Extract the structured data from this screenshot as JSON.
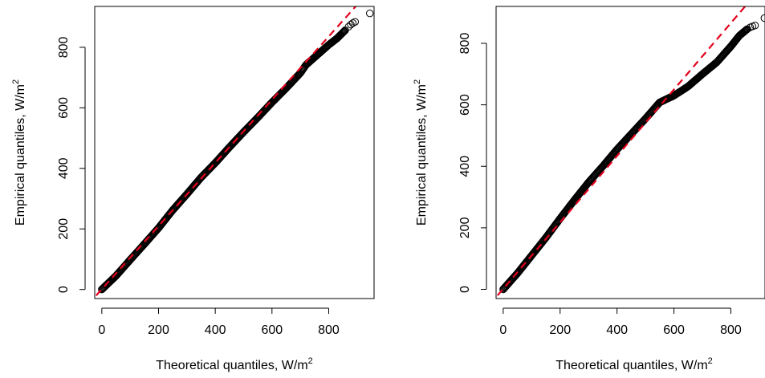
{
  "chart_data": [
    {
      "type": "scatter",
      "xlabel": "Theoretical quantiles,  W/m",
      "xlabel_sup": "2",
      "ylabel": "Empirical quantiles,  W/m",
      "ylabel_sup": "2",
      "xlim": [
        -25,
        960
      ],
      "ylim": [
        -30,
        935
      ],
      "xticks": [
        0,
        200,
        400,
        600,
        800
      ],
      "yticks": [
        0,
        200,
        400,
        600,
        800
      ],
      "reference_line": {
        "x": [
          -20,
          900
        ],
        "y": [
          -20,
          940
        ],
        "color": "#e3001b",
        "style": "dashed"
      },
      "series": [
        {
          "knots": [
            [
              0,
              0
            ],
            [
              50,
              45
            ],
            [
              100,
              98
            ],
            [
              150,
              150
            ],
            [
              200,
              203
            ],
            [
              250,
              262
            ],
            [
              300,
              315
            ],
            [
              350,
              370
            ],
            [
              400,
              418
            ],
            [
              450,
              470
            ],
            [
              500,
              520
            ],
            [
              550,
              568
            ],
            [
              600,
              618
            ],
            [
              650,
              665
            ],
            [
              700,
              715
            ],
            [
              720,
              742
            ],
            [
              760,
              775
            ],
            [
              800,
              808
            ],
            [
              830,
              830
            ],
            [
              860,
              858
            ]
          ],
          "extra_points": [
            [
              870,
              868
            ],
            [
              878,
              875
            ],
            [
              885,
              880
            ],
            [
              893,
              884
            ],
            [
              945,
              912
            ]
          ]
        }
      ]
    },
    {
      "type": "scatter",
      "xlabel": "Theoretical quantiles,  W/m",
      "xlabel_sup": "2",
      "ylabel": "Empirical quantiles,  W/m",
      "ylabel_sup": "2",
      "xlim": [
        -25,
        920
      ],
      "ylim": [
        -30,
        920
      ],
      "xticks": [
        0,
        200,
        400,
        600,
        800
      ],
      "yticks": [
        0,
        200,
        400,
        600,
        800
      ],
      "reference_line": {
        "x": [
          -20,
          850
        ],
        "y": [
          -20,
          920
        ],
        "color": "#e3001b",
        "style": "dashed"
      },
      "series": [
        {
          "knots": [
            [
              0,
              0
            ],
            [
              50,
              52
            ],
            [
              100,
              110
            ],
            [
              150,
              168
            ],
            [
              200,
              230
            ],
            [
              250,
              290
            ],
            [
              300,
              348
            ],
            [
              350,
              400
            ],
            [
              400,
              455
            ],
            [
              450,
              505
            ],
            [
              500,
              555
            ],
            [
              550,
              608
            ],
            [
              600,
              630
            ],
            [
              650,
              660
            ],
            [
              700,
              700
            ],
            [
              750,
              738
            ],
            [
              800,
              790
            ],
            [
              830,
              825
            ],
            [
              860,
              848
            ]
          ],
          "extra_points": [
            [
              868,
              852
            ],
            [
              876,
              855
            ],
            [
              885,
              858
            ],
            [
              918,
              882
            ]
          ]
        }
      ]
    }
  ]
}
